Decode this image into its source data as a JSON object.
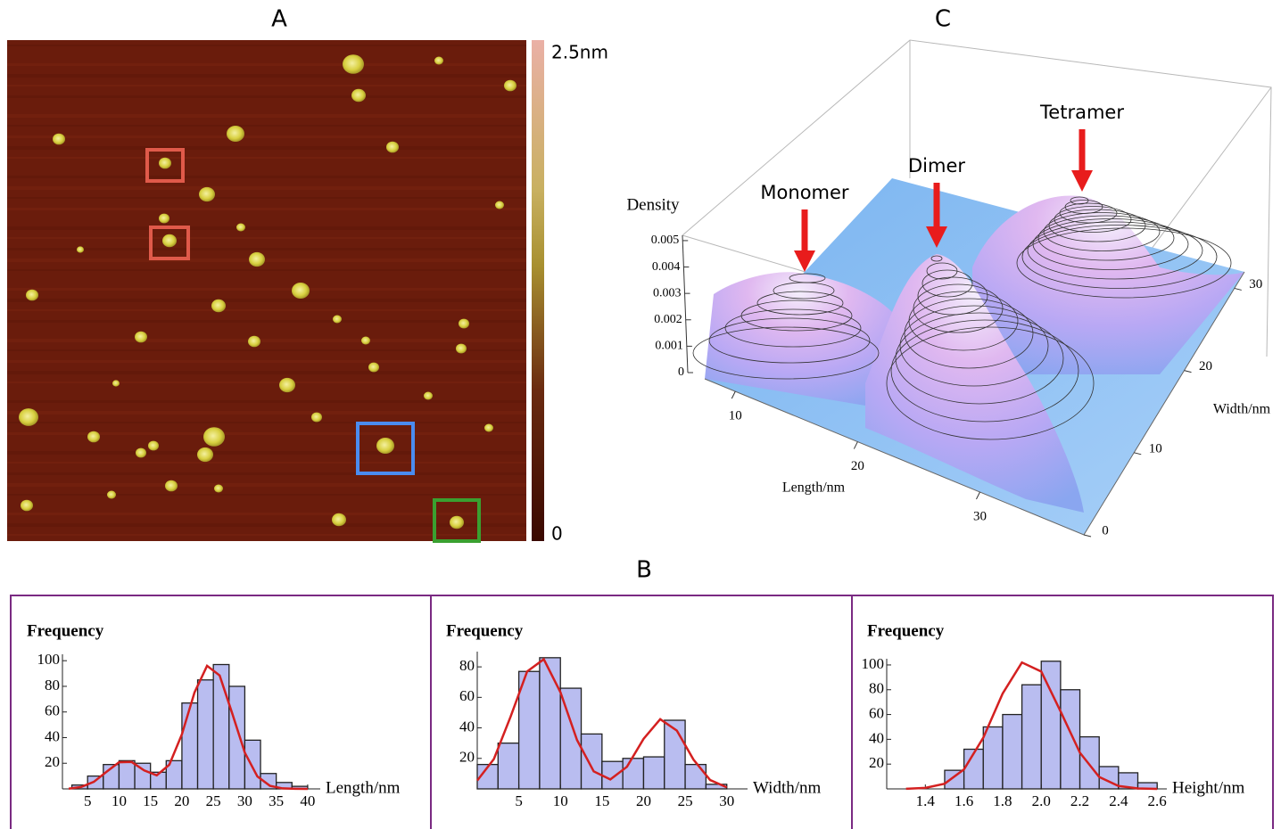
{
  "panel_a": {
    "title": "A",
    "colorbar_labels": [
      "2.5nm",
      "0"
    ]
  },
  "panel_c": {
    "title": "C",
    "z_label": "Density",
    "zlim": [
      0,
      0.0052
    ],
    "zticks": [
      0,
      0.001,
      0.002,
      0.003,
      0.004,
      0.005
    ],
    "x_label": "Length/nm",
    "xlim": [
      7.5,
      38.5
    ],
    "xticks": [
      10,
      20,
      30
    ],
    "y_label": "Width/nm",
    "ylim": [
      0,
      32
    ],
    "yticks": [
      0,
      10,
      20,
      30
    ],
    "annotations": [
      "Monomer",
      "Dimer",
      "Tetramer"
    ]
  },
  "panel_b_title": "B",
  "chart_data": [
    {
      "type": "histogram",
      "y_label": "Frequency",
      "x_label": "Length/nm",
      "color": "#b9bdf0",
      "bins": [
        2.5,
        5,
        7.5,
        10,
        12.5,
        15,
        17.5,
        20,
        22.5,
        25,
        27.5,
        30,
        32.5,
        35,
        37.5,
        40
      ],
      "values": [
        3,
        10,
        19,
        22,
        20,
        13,
        22,
        67,
        85,
        97,
        80,
        38,
        12,
        5,
        2
      ],
      "fit": {
        "color": "#d42020",
        "x": [
          2,
          4,
          6,
          8,
          10,
          12,
          14,
          16,
          18,
          20,
          22,
          24,
          26,
          28,
          30,
          32,
          34,
          36,
          38,
          40
        ],
        "y": [
          0.2,
          1.5,
          5.5,
          13.3,
          20.8,
          21,
          14.4,
          10.6,
          18.9,
          42.6,
          75.2,
          96,
          88.5,
          58.9,
          28.3,
          9.7,
          2.4,
          0.4,
          0.1,
          0
        ]
      },
      "xlim": [
        1,
        42
      ],
      "ylim": [
        0,
        105
      ],
      "xticks": [
        5,
        10,
        15,
        20,
        25,
        30,
        35,
        40
      ],
      "yticks": [
        20,
        40,
        60,
        80,
        100
      ]
    },
    {
      "type": "histogram",
      "y_label": "Frequency",
      "x_label": "Width/nm",
      "color": "#b9bdf0",
      "bins": [
        0,
        2.5,
        5,
        7.5,
        10,
        12.5,
        15,
        17.5,
        20,
        22.5,
        25,
        27.5,
        30
      ],
      "values": [
        16,
        30,
        77,
        86,
        66,
        36,
        18,
        20,
        21,
        45,
        16,
        3
      ],
      "fit": {
        "color": "#d42020",
        "x": [
          0,
          2,
          4,
          6,
          8,
          10,
          12,
          14,
          16,
          18,
          20,
          22,
          24,
          26,
          28,
          30
        ],
        "y": [
          5.5,
          19.6,
          47.2,
          77,
          85,
          63.4,
          32,
          11.5,
          6.2,
          14.5,
          32.8,
          45.7,
          38.2,
          19.2,
          5.8,
          1
        ]
      },
      "xlim": [
        0,
        32.5
      ],
      "ylim": [
        0,
        90
      ],
      "xticks": [
        5,
        10,
        15,
        20,
        25,
        30
      ],
      "yticks": [
        20,
        40,
        60,
        80
      ]
    },
    {
      "type": "histogram",
      "y_label": "Frequency",
      "x_label": "Height/nm",
      "color": "#b9bdf0",
      "bins": [
        1.5,
        1.6,
        1.7,
        1.8,
        1.9,
        2,
        2.1,
        2.2,
        2.3,
        2.4,
        2.5,
        2.6
      ],
      "values": [
        15,
        32,
        50,
        60,
        84,
        103,
        80,
        42,
        18,
        13,
        5
      ],
      "fit": {
        "color": "#d42020",
        "x": [
          1.3,
          1.4,
          1.5,
          1.6,
          1.7,
          1.8,
          1.9,
          2,
          2.1,
          2.2,
          2.3,
          2.4,
          2.5,
          2.6
        ],
        "y": [
          0.1,
          0.8,
          4.2,
          15.7,
          41.3,
          76.9,
          102,
          94.7,
          62.5,
          29.2,
          9.6,
          2.3,
          0.4,
          0
        ]
      },
      "xlim": [
        1.2,
        2.65
      ],
      "ylim": [
        0,
        105
      ],
      "xticks": [
        1.4,
        1.6,
        1.8,
        {
          "value": 2,
          "label": "2.0"
        },
        2.2,
        2.4,
        2.6
      ],
      "yticks": [
        20,
        40,
        60,
        80,
        100
      ]
    }
  ]
}
